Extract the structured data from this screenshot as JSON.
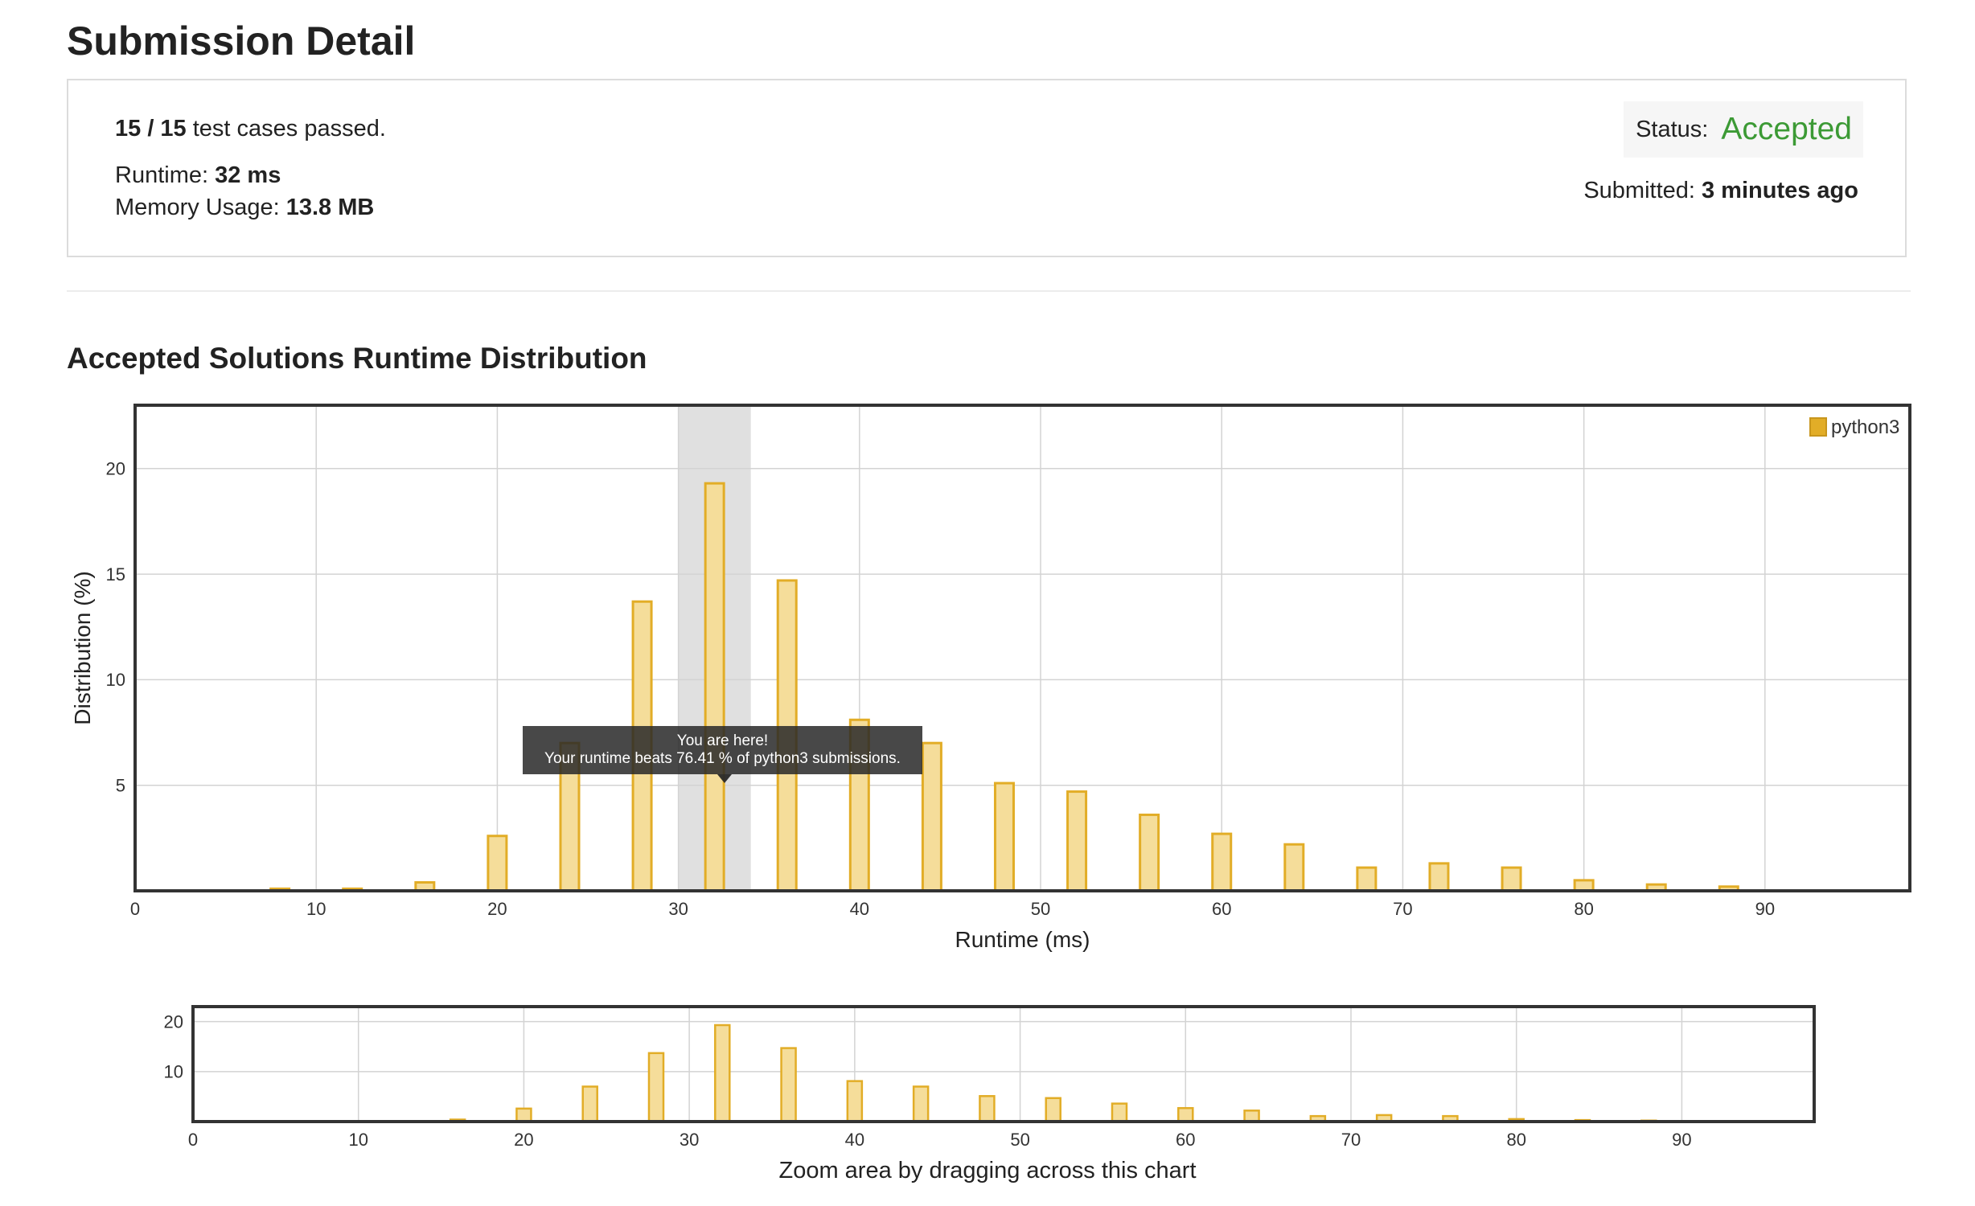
{
  "page": {
    "title": "Submission Detail",
    "section_title": "Accepted Solutions Runtime Distribution"
  },
  "summary": {
    "passed": "15 / 15",
    "passed_suffix": " test cases passed.",
    "runtime_label": "Runtime: ",
    "runtime_value": "32 ms",
    "memory_label": "Memory Usage: ",
    "memory_value": "13.8 MB",
    "status_label": "Status: ",
    "status_value": "Accepted",
    "submitted_label": "Submitted: ",
    "submitted_value": "3 minutes ago"
  },
  "colors": {
    "accent": "#3c9a35",
    "bar_fill": "#f5dd9a",
    "bar_stroke": "#e2ad27",
    "highlight_band": "#e0e0e0"
  },
  "tooltip": {
    "line1": "You are here!",
    "line2": "Your runtime beats 76.41 % of python3 submissions."
  },
  "chart_data": [
    {
      "type": "bar",
      "xlabel": "Runtime (ms)",
      "ylabel": "Distribution (%)",
      "xlim": [
        0,
        98
      ],
      "ylim": [
        0,
        23
      ],
      "xticks": [
        0,
        10,
        20,
        30,
        40,
        50,
        60,
        70,
        80,
        90
      ],
      "yticks": [
        5,
        10,
        15,
        20
      ],
      "grid": true,
      "legend_position": "top-right",
      "highlight_range": [
        30,
        34
      ],
      "series": [
        {
          "name": "python3",
          "x": [
            8,
            12,
            16,
            20,
            24,
            28,
            32,
            36,
            40,
            44,
            48,
            52,
            56,
            60,
            64,
            68,
            72,
            76,
            80,
            84,
            88
          ],
          "values": [
            0.1,
            0.1,
            0.4,
            2.6,
            7.0,
            13.7,
            19.3,
            14.7,
            8.1,
            7.0,
            5.1,
            4.7,
            3.6,
            2.7,
            2.2,
            1.1,
            1.3,
            1.1,
            0.5,
            0.3,
            0.2
          ]
        }
      ]
    },
    {
      "type": "bar",
      "caption": "Zoom area by dragging across this chart",
      "xlim": [
        0,
        98
      ],
      "ylim": [
        0,
        23
      ],
      "xticks": [
        0,
        10,
        20,
        30,
        40,
        50,
        60,
        70,
        80,
        90
      ],
      "yticks": [
        10,
        20
      ],
      "grid": true,
      "series": [
        {
          "x": [
            8,
            12,
            16,
            20,
            24,
            28,
            32,
            36,
            40,
            44,
            48,
            52,
            56,
            60,
            64,
            68,
            72,
            76,
            80,
            84,
            88
          ],
          "values": [
            0.1,
            0.1,
            0.4,
            2.6,
            7.0,
            13.7,
            19.3,
            14.7,
            8.1,
            7.0,
            5.1,
            4.7,
            3.6,
            2.7,
            2.2,
            1.1,
            1.3,
            1.1,
            0.5,
            0.3,
            0.2
          ]
        }
      ]
    }
  ]
}
